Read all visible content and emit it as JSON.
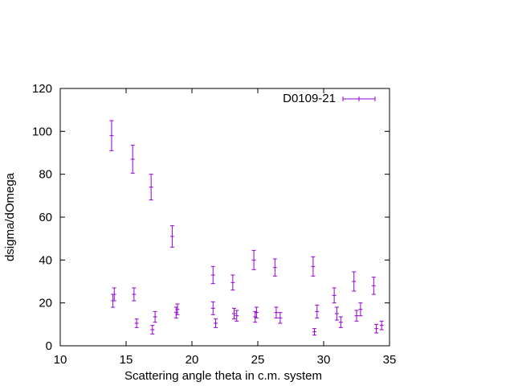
{
  "chart_data": {
    "type": "scatter",
    "xlabel": "Scattering angle theta in c.m. system",
    "ylabel": "dsigma/dOmega",
    "xlim": [
      10,
      35
    ],
    "ylim": [
      0,
      120
    ],
    "x_ticks": [
      10,
      15,
      20,
      25,
      30,
      35
    ],
    "y_ticks": [
      0,
      20,
      40,
      60,
      80,
      100,
      120
    ],
    "grid": false,
    "legend_position": "top-right",
    "series": [
      {
        "name": "D0109-21",
        "color": "#9400d3",
        "marker": "plus-with-error-bars",
        "points": [
          {
            "x": 13.9,
            "y": 98,
            "err": 7,
            "xerr": 0.15
          },
          {
            "x": 14.0,
            "y": 21,
            "err": 3,
            "xerr": 0.15
          },
          {
            "x": 14.1,
            "y": 24,
            "err": 3,
            "xerr": 0.15
          },
          {
            "x": 15.5,
            "y": 87,
            "err": 6.5,
            "xerr": 0.15
          },
          {
            "x": 15.6,
            "y": 24,
            "err": 3,
            "xerr": 0.15
          },
          {
            "x": 15.8,
            "y": 10.5,
            "err": 2,
            "xerr": 0.15
          },
          {
            "x": 16.9,
            "y": 74,
            "err": 6,
            "xerr": 0.15
          },
          {
            "x": 17.0,
            "y": 7.5,
            "err": 2,
            "xerr": 0.15
          },
          {
            "x": 17.2,
            "y": 13.5,
            "err": 2.5,
            "xerr": 0.15
          },
          {
            "x": 18.5,
            "y": 51,
            "err": 5,
            "xerr": 0.15
          },
          {
            "x": 18.8,
            "y": 15.5,
            "err": 2.5,
            "xerr": 0.15
          },
          {
            "x": 18.9,
            "y": 17,
            "err": 2.5,
            "xerr": 0.15
          },
          {
            "x": 21.6,
            "y": 33,
            "err": 4,
            "xerr": 0.15
          },
          {
            "x": 21.6,
            "y": 17.5,
            "err": 3,
            "xerr": 0.15
          },
          {
            "x": 21.8,
            "y": 10.5,
            "err": 2,
            "xerr": 0.15
          },
          {
            "x": 23.1,
            "y": 29.5,
            "err": 3.5,
            "xerr": 0.15
          },
          {
            "x": 23.2,
            "y": 15,
            "err": 2.5,
            "xerr": 0.15
          },
          {
            "x": 23.4,
            "y": 14,
            "err": 2.5,
            "xerr": 0.15
          },
          {
            "x": 24.7,
            "y": 40,
            "err": 4.5,
            "xerr": 0.15
          },
          {
            "x": 24.8,
            "y": 13.5,
            "err": 2.5,
            "xerr": 0.15
          },
          {
            "x": 24.9,
            "y": 15.5,
            "err": 2.5,
            "xerr": 0.15
          },
          {
            "x": 26.3,
            "y": 36.5,
            "err": 4,
            "xerr": 0.15
          },
          {
            "x": 26.4,
            "y": 15.5,
            "err": 2.5,
            "xerr": 0.15
          },
          {
            "x": 26.7,
            "y": 13,
            "err": 2.5,
            "xerr": 0.15
          },
          {
            "x": 29.2,
            "y": 37,
            "err": 4.5,
            "xerr": 0.15
          },
          {
            "x": 29.3,
            "y": 6.5,
            "err": 1.5,
            "xerr": 0.15
          },
          {
            "x": 29.5,
            "y": 16,
            "err": 3,
            "xerr": 0.15
          },
          {
            "x": 30.8,
            "y": 23.5,
            "err": 3.5,
            "xerr": 0.15
          },
          {
            "x": 31.0,
            "y": 15,
            "err": 3,
            "xerr": 0.15
          },
          {
            "x": 31.3,
            "y": 11,
            "err": 2.5,
            "xerr": 0.15
          },
          {
            "x": 32.3,
            "y": 30,
            "err": 4.5,
            "xerr": 0.15
          },
          {
            "x": 32.5,
            "y": 14,
            "err": 2.5,
            "xerr": 0.15
          },
          {
            "x": 32.8,
            "y": 17,
            "err": 3,
            "xerr": 0.15
          },
          {
            "x": 33.8,
            "y": 28,
            "err": 4,
            "xerr": 0.15
          },
          {
            "x": 34.0,
            "y": 8,
            "err": 2,
            "xerr": 0.15
          },
          {
            "x": 34.4,
            "y": 9.5,
            "err": 2,
            "xerr": 0.15
          }
        ]
      }
    ]
  }
}
